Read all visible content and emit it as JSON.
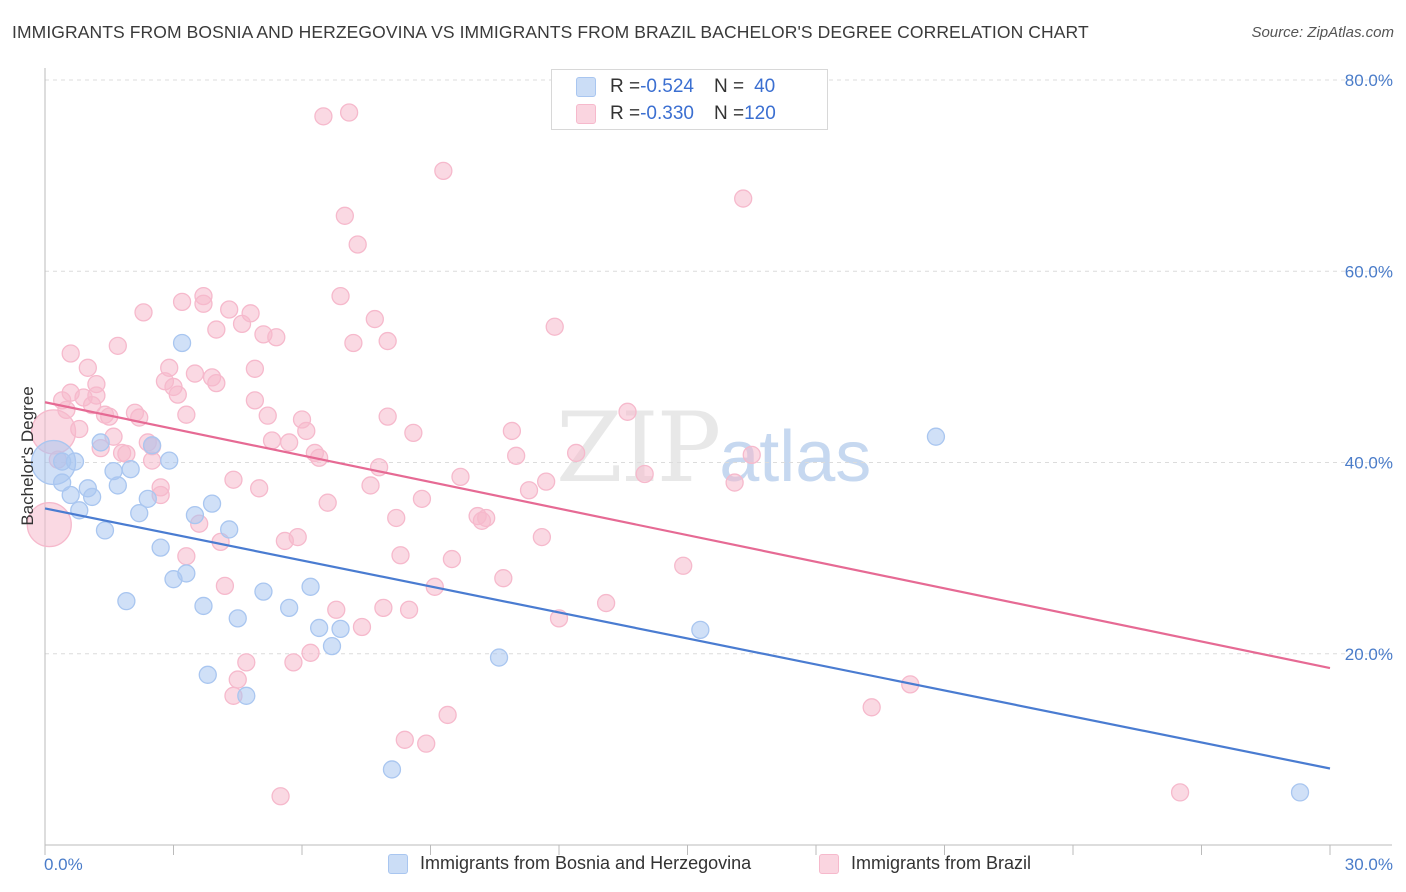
{
  "title": "IMMIGRANTS FROM BOSNIA AND HERZEGOVINA VS IMMIGRANTS FROM BRAZIL BACHELOR'S DEGREE CORRELATION CHART",
  "source": "Source: ZipAtlas.com",
  "watermark": {
    "zip": "ZIP",
    "atlas": "atlas"
  },
  "stats_legend": [
    {
      "r_label": "R = ",
      "r_value": "-0.524",
      "n_label": "N = ",
      "n_value": "40",
      "color": "#a9c6f0"
    },
    {
      "r_label": "R = ",
      "r_value": "-0.330",
      "n_label": "N = ",
      "n_value": "120",
      "color": "#f6b9cc"
    }
  ],
  "chart_data": {
    "type": "scatter",
    "xlabel": "",
    "ylabel": "Bachelor's Degree",
    "xlim": [
      0,
      30
    ],
    "ylim": [
      0,
      80
    ],
    "x_tick_labels": [
      "0.0%",
      "30.0%"
    ],
    "y_tick_labels": [
      "20.0%",
      "40.0%",
      "60.0%",
      "80.0%"
    ],
    "y_ticks": [
      20,
      40,
      60,
      80
    ],
    "grid": "horizontal dashed",
    "legend": "bottom",
    "series": [
      {
        "name": "Immigrants from Bosnia and Herzegovina",
        "color": "#4a7cd1",
        "fill": "#a9c6f0",
        "trend": {
          "x": [
            0,
            30
          ],
          "y": [
            35.2,
            8.0
          ]
        },
        "points": [
          [
            0.2,
            40.0,
            "large"
          ],
          [
            0.4,
            40.1
          ],
          [
            0.4,
            37.9
          ],
          [
            0.6,
            36.6
          ],
          [
            0.7,
            40.1
          ],
          [
            0.8,
            35.0
          ],
          [
            1.0,
            37.3
          ],
          [
            1.1,
            36.4
          ],
          [
            1.3,
            42.1
          ],
          [
            1.4,
            32.9
          ],
          [
            1.6,
            39.1
          ],
          [
            1.7,
            37.6
          ],
          [
            1.9,
            25.5
          ],
          [
            2.0,
            39.3
          ],
          [
            2.2,
            34.7
          ],
          [
            2.4,
            36.2
          ],
          [
            2.5,
            41.8
          ],
          [
            2.7,
            31.1
          ],
          [
            2.9,
            40.2
          ],
          [
            3.0,
            27.8
          ],
          [
            3.2,
            52.5
          ],
          [
            3.3,
            28.4
          ],
          [
            3.5,
            34.5
          ],
          [
            3.7,
            25.0
          ],
          [
            3.8,
            17.8
          ],
          [
            3.9,
            35.7
          ],
          [
            4.3,
            33.0
          ],
          [
            4.5,
            23.7
          ],
          [
            4.7,
            15.6
          ],
          [
            5.1,
            26.5
          ],
          [
            5.7,
            24.8
          ],
          [
            6.2,
            27.0
          ],
          [
            6.4,
            22.7
          ],
          [
            6.7,
            20.8
          ],
          [
            6.9,
            22.6
          ],
          [
            8.1,
            7.9
          ],
          [
            10.6,
            19.6
          ],
          [
            15.3,
            22.5
          ],
          [
            20.8,
            42.7
          ],
          [
            29.3,
            5.5
          ]
        ]
      },
      {
        "name": "Immigrants from Brazil",
        "color": "#e66a94",
        "fill": "#f6b9cc",
        "trend": {
          "x": [
            0,
            30
          ],
          "y": [
            46.3,
            18.5
          ]
        },
        "points": [
          [
            0.1,
            33.5,
            "large"
          ],
          [
            0.2,
            43.2,
            "large"
          ],
          [
            0.3,
            40.3
          ],
          [
            0.4,
            46.5
          ],
          [
            0.5,
            45.5
          ],
          [
            0.6,
            47.3
          ],
          [
            0.6,
            51.4
          ],
          [
            0.8,
            43.5
          ],
          [
            0.9,
            46.8
          ],
          [
            1.0,
            49.9
          ],
          [
            1.1,
            46.0
          ],
          [
            1.2,
            47.0
          ],
          [
            1.2,
            48.2
          ],
          [
            1.3,
            41.5
          ],
          [
            1.4,
            45.0
          ],
          [
            1.5,
            44.8
          ],
          [
            1.6,
            42.7
          ],
          [
            1.7,
            52.2
          ],
          [
            1.8,
            41.0
          ],
          [
            1.9,
            40.9
          ],
          [
            2.1,
            45.2
          ],
          [
            2.2,
            44.7
          ],
          [
            2.3,
            55.7
          ],
          [
            2.4,
            42.1
          ],
          [
            2.5,
            41.7
          ],
          [
            2.5,
            40.2
          ],
          [
            2.7,
            37.4
          ],
          [
            2.7,
            36.6
          ],
          [
            2.8,
            48.5
          ],
          [
            2.9,
            49.9
          ],
          [
            3.0,
            47.9
          ],
          [
            3.1,
            47.1
          ],
          [
            3.2,
            56.8
          ],
          [
            3.3,
            45.0
          ],
          [
            3.3,
            30.2
          ],
          [
            3.5,
            49.3
          ],
          [
            3.6,
            33.6
          ],
          [
            3.7,
            57.4
          ],
          [
            3.7,
            56.6
          ],
          [
            3.9,
            48.9
          ],
          [
            4.0,
            48.3
          ],
          [
            4.0,
            53.9
          ],
          [
            4.1,
            31.7
          ],
          [
            4.2,
            27.1
          ],
          [
            4.3,
            56.0
          ],
          [
            4.4,
            38.2
          ],
          [
            4.4,
            15.6
          ],
          [
            4.5,
            17.3
          ],
          [
            4.6,
            54.5
          ],
          [
            4.7,
            19.1
          ],
          [
            4.8,
            55.6
          ],
          [
            4.9,
            49.8
          ],
          [
            4.9,
            46.5
          ],
          [
            5.0,
            37.3
          ],
          [
            5.1,
            53.4
          ],
          [
            5.2,
            44.9
          ],
          [
            5.3,
            42.3
          ],
          [
            5.4,
            53.1
          ],
          [
            5.5,
            5.1
          ],
          [
            5.6,
            31.8
          ],
          [
            5.7,
            42.1
          ],
          [
            5.8,
            19.1
          ],
          [
            5.9,
            32.2
          ],
          [
            6.0,
            44.5
          ],
          [
            6.1,
            43.3
          ],
          [
            6.2,
            20.1
          ],
          [
            6.3,
            41.0
          ],
          [
            6.4,
            40.5
          ],
          [
            6.5,
            76.2
          ],
          [
            6.6,
            35.8
          ],
          [
            6.8,
            24.6
          ],
          [
            6.9,
            57.4
          ],
          [
            7.0,
            65.8
          ],
          [
            7.2,
            52.5
          ],
          [
            7.3,
            62.8
          ],
          [
            7.4,
            22.8
          ],
          [
            7.6,
            37.6
          ],
          [
            7.7,
            55.0
          ],
          [
            7.8,
            39.5
          ],
          [
            7.9,
            24.8
          ],
          [
            8.0,
            52.7
          ],
          [
            8.0,
            44.8
          ],
          [
            8.2,
            34.2
          ],
          [
            8.3,
            30.3
          ],
          [
            8.4,
            11.0
          ],
          [
            8.5,
            24.6
          ],
          [
            8.6,
            43.1
          ],
          [
            8.8,
            36.2
          ],
          [
            8.9,
            10.6
          ],
          [
            9.1,
            27.0
          ],
          [
            9.3,
            70.5
          ],
          [
            9.4,
            13.6
          ],
          [
            9.5,
            29.9
          ],
          [
            9.7,
            38.5
          ],
          [
            10.1,
            34.4
          ],
          [
            10.2,
            33.9
          ],
          [
            10.3,
            34.2
          ],
          [
            10.7,
            27.9
          ],
          [
            10.9,
            43.3
          ],
          [
            11.0,
            40.7
          ],
          [
            11.3,
            37.1
          ],
          [
            11.6,
            32.2
          ],
          [
            11.7,
            38.0
          ],
          [
            11.9,
            54.2
          ],
          [
            12.0,
            23.7
          ],
          [
            12.4,
            41.0
          ],
          [
            13.1,
            25.3
          ],
          [
            13.6,
            45.3
          ],
          [
            14.0,
            38.8
          ],
          [
            14.9,
            29.2
          ],
          [
            16.1,
            37.9
          ],
          [
            16.3,
            67.6
          ],
          [
            16.5,
            40.8
          ],
          [
            19.3,
            14.4
          ],
          [
            20.2,
            16.8
          ],
          [
            26.5,
            5.5
          ],
          [
            7.1,
            76.6
          ]
        ]
      }
    ]
  },
  "bottom_legend": [
    {
      "label": "Immigrants from Bosnia and Herzegovina",
      "color": "#a9c6f0"
    },
    {
      "label": "Immigrants from Brazil",
      "color": "#f6b9cc"
    }
  ]
}
